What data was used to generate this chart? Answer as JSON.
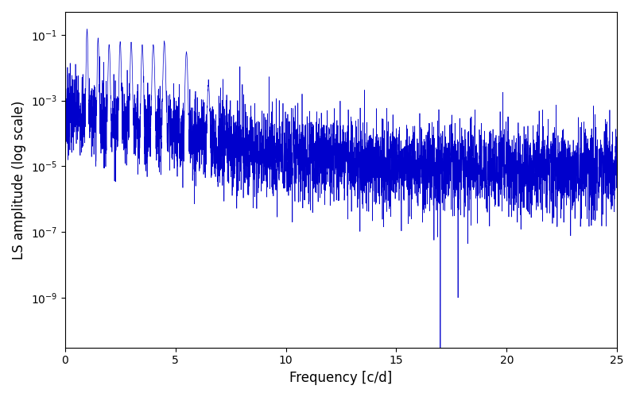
{
  "xlabel": "Frequency [c/d]",
  "ylabel": "LS amplitude (log scale)",
  "xlim": [
    0,
    25
  ],
  "ylim": [
    3e-11,
    0.5
  ],
  "line_color": "#0000cc",
  "background_color": "#ffffff",
  "n_points": 5000,
  "seed": 7,
  "freq_max": 25.0,
  "xlabel_fontsize": 12,
  "ylabel_fontsize": 12,
  "tick_fontsize": 10,
  "figwidth": 8.0,
  "figheight": 5.0,
  "dpi": 100
}
